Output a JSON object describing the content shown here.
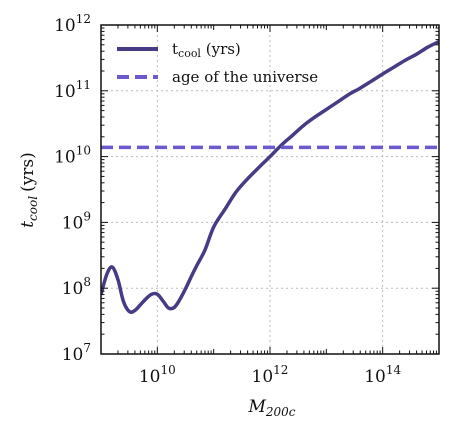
{
  "chart_data": {
    "type": "line",
    "xlabel": "M",
    "xlabel_sub": "200c",
    "ylabel": "t",
    "ylabel_sub": "cool",
    "ylabel_unit": "(yrs)",
    "x_scale": "log",
    "y_scale": "log",
    "xlim": [
      1000000000.0,
      1000000000000000.0
    ],
    "ylim": [
      10000000.0,
      1000000000000.0
    ],
    "x_ticks": [
      {
        "base": "10",
        "exp": "10",
        "value": 10000000000.0
      },
      {
        "base": "10",
        "exp": "12",
        "value": 1000000000000.0
      },
      {
        "base": "10",
        "exp": "14",
        "value": 100000000000000.0
      }
    ],
    "y_ticks": [
      {
        "base": "10",
        "exp": "7",
        "value": 10000000.0
      },
      {
        "base": "10",
        "exp": "8",
        "value": 100000000.0
      },
      {
        "base": "10",
        "exp": "9",
        "value": 1000000000.0
      },
      {
        "base": "10",
        "exp": "10",
        "value": 10000000000.0
      },
      {
        "base": "10",
        "exp": "11",
        "value": 100000000000.0
      },
      {
        "base": "10",
        "exp": "12",
        "value": 1000000000000.0
      }
    ],
    "grid": true,
    "legend_position": "top-left",
    "series": [
      {
        "name": "t",
        "name_sub": "cool",
        "name_suffix": " (yrs)",
        "style": "solid",
        "color": "#463C85",
        "x": [
          1000000000.0,
          1260000000.0,
          1580000000.0,
          2000000000.0,
          2500000000.0,
          3200000000.0,
          4000000000.0,
          5000000000.0,
          6300000000.0,
          7900000000.0,
          10000000000.0,
          12600000000.0,
          15800000000.0,
          20000000000.0,
          25000000000.0,
          32000000000.0,
          40000000000.0,
          50000000000.0,
          70000000000.0,
          100000000000.0,
          160000000000.0,
          250000000000.0,
          400000000000.0,
          630000000000.0,
          1000000000000.0,
          1600000000000.0,
          2500000000000.0,
          4000000000000.0,
          6300000000000.0,
          10000000000000.0,
          16000000000000.0,
          25000000000000.0,
          40000000000000.0,
          63000000000000.0,
          100000000000000.0,
          160000000000000.0,
          250000000000000.0,
          400000000000000.0,
          630000000000000.0,
          1000000000000000.0
        ],
        "y": [
          80000000.0,
          160000000.0,
          210000000.0,
          135000000.0,
          63000000.0,
          44000000.0,
          46000000.0,
          56000000.0,
          69000000.0,
          81000000.0,
          81000000.0,
          64000000.0,
          50000000.0,
          51000000.0,
          67000000.0,
          100000000.0,
          150000000.0,
          220000000.0,
          380000000.0,
          850000000.0,
          1600000000.0,
          2900000000.0,
          4600000000.0,
          6800000000.0,
          10000000000.0,
          15000000000.0,
          21000000000.0,
          30000000000.0,
          40000000000.0,
          52000000000.0,
          68000000000.0,
          88000000000.0,
          110000000000.0,
          140000000000.0,
          180000000000.0,
          230000000000.0,
          290000000000.0,
          360000000000.0,
          460000000000.0,
          560000000000.0
        ]
      },
      {
        "name": "age of the universe",
        "style": "dashed",
        "color": "#6A5ACD",
        "x": [
          1000000000.0,
          1000000000000000.0
        ],
        "y": [
          13800000000.0,
          13800000000.0
        ]
      }
    ]
  }
}
